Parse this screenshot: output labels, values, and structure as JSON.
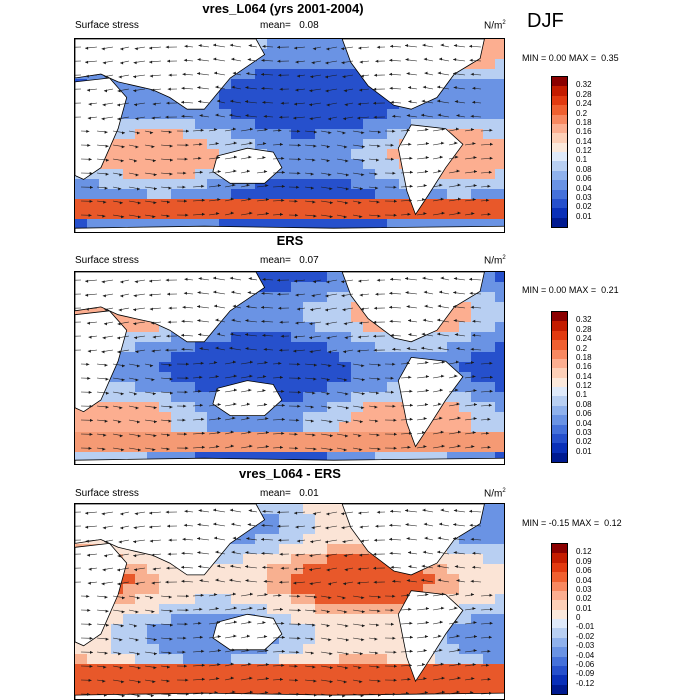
{
  "season": "DJF",
  "panels": [
    {
      "title": "vres_L064 (yrs 2001-2004)",
      "field": "Surface stress",
      "mean_label": "mean=",
      "mean_value": "0.08",
      "units": "N/m",
      "units_sup": "2",
      "min_label": "MIN =",
      "min_value": "0.00",
      "max_label": "MAX =",
      "max_value": "0.35",
      "levels": [
        "0.32",
        "0.28",
        "0.24",
        "0.2",
        "0.18",
        "0.16",
        "0.14",
        "0.12",
        "0.1",
        "0.08",
        "0.06",
        "0.04",
        "0.03",
        "0.02",
        "0.01"
      ],
      "colors": [
        "#8b0000",
        "#c41c00",
        "#e23a10",
        "#f06030",
        "#f88860",
        "#fcae90",
        "#fdd0b8",
        "#fbe9dc",
        "#dfeafa",
        "#b8cff2",
        "#8fb1ec",
        "#6a93e4",
        "#4571da",
        "#2650cc",
        "#0a30b8",
        "#001a90"
      ]
    },
    {
      "title": "ERS",
      "field": "Surface stress",
      "mean_label": "mean=",
      "mean_value": "0.07",
      "units": "N/m",
      "units_sup": "2",
      "min_label": "MIN =",
      "min_value": "0.00",
      "max_label": "MAX =",
      "max_value": "0.21",
      "levels": [
        "0.32",
        "0.28",
        "0.24",
        "0.2",
        "0.18",
        "0.16",
        "0.14",
        "0.12",
        "0.1",
        "0.08",
        "0.06",
        "0.04",
        "0.03",
        "0.02",
        "0.01"
      ],
      "colors": [
        "#8b0000",
        "#c41c00",
        "#e23a10",
        "#f06030",
        "#f88860",
        "#fcae90",
        "#fdd0b8",
        "#fbe9dc",
        "#dfeafa",
        "#b8cff2",
        "#8fb1ec",
        "#6a93e4",
        "#4571da",
        "#2650cc",
        "#0a30b8",
        "#001a90"
      ]
    },
    {
      "title": "vres_L064 - ERS",
      "field": "Surface stress",
      "mean_label": "mean=",
      "mean_value": "0.01",
      "units": "N/m",
      "units_sup": "2",
      "min_label": "MIN =",
      "min_value": "-0.15",
      "max_label": "MAX =",
      "max_value": "0.12",
      "levels": [
        "0.12",
        "0.09",
        "0.06",
        "0.04",
        "0.03",
        "0.02",
        "0.01",
        "0",
        "-0.01",
        "-0.02",
        "-0.03",
        "-0.04",
        "-0.06",
        "-0.09",
        "-0.12"
      ],
      "colors": [
        "#8b0000",
        "#c41c00",
        "#e23a10",
        "#f06030",
        "#f88860",
        "#fcae90",
        "#fdd0b8",
        "#fbe9dc",
        "#dfeafa",
        "#b8cff2",
        "#8fb1ec",
        "#6a93e4",
        "#4571da",
        "#2650cc",
        "#0a30b8",
        "#001a90"
      ]
    }
  ],
  "map_colors": {
    "land": "#ffffff",
    "coast": "#000000",
    "ocean_low": "#1a4fd0",
    "ocean_mid": "#a8c4f0",
    "ocean_high": "#f07040",
    "arrow": "#1a1a1a"
  }
}
